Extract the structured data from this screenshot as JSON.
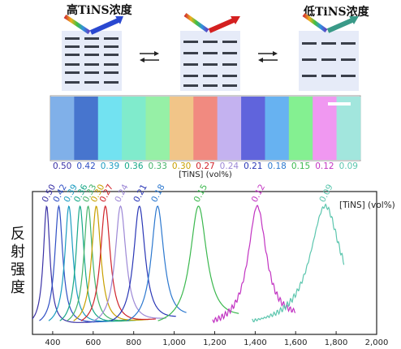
{
  "top": {
    "high_label": "高TiNS浓度",
    "low_label": "低TiNS浓度"
  },
  "strip": {
    "unit_label": "[TiNS] (vol%)",
    "items": [
      {
        "value": "0.50",
        "label_color": "#3b32a6",
        "fill": "#6fa6e6"
      },
      {
        "value": "0.42",
        "label_color": "#2f4fc4",
        "fill": "#2e62c8"
      },
      {
        "value": "0.39",
        "label_color": "#1c9cc1",
        "fill": "#5fdff0"
      },
      {
        "value": "0.36",
        "label_color": "#17a888",
        "fill": "#6fe9c5"
      },
      {
        "value": "0.33",
        "label_color": "#45b36a",
        "fill": "#88ee9a"
      },
      {
        "value": "0.30",
        "label_color": "#c8a000",
        "fill": "#efbe78"
      },
      {
        "value": "0.27",
        "label_color": "#d0232a",
        "fill": "#f07a6f"
      },
      {
        "value": "0.24",
        "label_color": "#9d88d6",
        "fill": "#bca8ee"
      },
      {
        "value": "0.21",
        "label_color": "#2a37b6",
        "fill": "#4a4fd8"
      },
      {
        "value": "0.18",
        "label_color": "#2c78cf",
        "fill": "#52a8ef"
      },
      {
        "value": "0.15",
        "label_color": "#3bb84e",
        "fill": "#73ee82"
      },
      {
        "value": "0.12",
        "label_color": "#c234c2",
        "fill": "#ee8af0"
      },
      {
        "value": "0.09",
        "label_color": "#5cc6ae",
        "fill": "#96e3d9"
      }
    ]
  },
  "chart_data": {
    "type": "line",
    "ylabel": "反射强度",
    "legend_title": "[TiNS] (vol%)",
    "xlim": [
      300,
      2000
    ],
    "x_ticks": [
      "400",
      "600",
      "800",
      "1,000",
      "1,200",
      "1,400",
      "1,600",
      "1,800",
      "2,000"
    ],
    "x_tick_values": [
      400,
      600,
      800,
      1000,
      1200,
      1400,
      1600,
      1800,
      2000
    ],
    "series": [
      {
        "name": "0.50",
        "color": "#3b32a6",
        "peak": 370,
        "width": 20,
        "x_end": 700,
        "label_x": 370
      },
      {
        "name": "0.42",
        "color": "#2f4fc4",
        "peak": 430,
        "width": 24,
        "x_end": 760,
        "label_x": 425
      },
      {
        "name": "0.39",
        "color": "#1c9cc1",
        "peak": 480,
        "width": 25,
        "x_end": 780,
        "label_x": 478
      },
      {
        "name": "0.36",
        "color": "#17a888",
        "peak": 535,
        "width": 25,
        "x_end": 830,
        "label_x": 528
      },
      {
        "name": "0.33",
        "color": "#45b36a",
        "peak": 575,
        "width": 26,
        "x_end": 850,
        "label_x": 572
      },
      {
        "name": "0.30",
        "color": "#c8a000",
        "peak": 615,
        "width": 28,
        "x_end": 880,
        "label_x": 612
      },
      {
        "name": "0.27",
        "color": "#d0232a",
        "peak": 660,
        "width": 30,
        "x_end": 910,
        "label_x": 655
      },
      {
        "name": "0.24",
        "color": "#9d88d6",
        "peak": 735,
        "width": 33,
        "x_end": 960,
        "label_x": 730
      },
      {
        "name": "0.21",
        "color": "#2a37b6",
        "peak": 828,
        "width": 35,
        "x_end": 1010,
        "label_x": 822
      },
      {
        "name": "0.18",
        "color": "#2c78cf",
        "peak": 918,
        "width": 38,
        "x_end": 1060,
        "label_x": 910
      },
      {
        "name": "0.15",
        "color": "#3bb84e",
        "peak": 1120,
        "width": 50,
        "x_end": 1320,
        "label_x": 1120
      },
      {
        "name": "0.12",
        "color": "#c234c2",
        "peak": 1410,
        "width": 55,
        "x_end": 1600,
        "label_x": 1405
      },
      {
        "name": "0.09",
        "color": "#5cc6ae",
        "peak": 1745,
        "width": 90,
        "x_end": 1840,
        "label_x": 1740
      }
    ]
  }
}
